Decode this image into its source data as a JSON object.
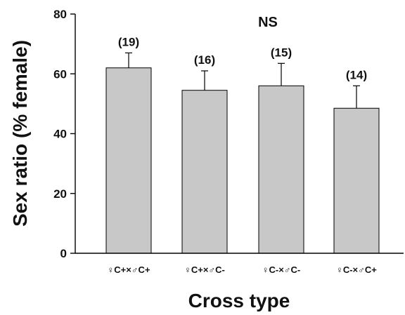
{
  "chart_data": {
    "type": "bar",
    "title": "NS",
    "xlabel": "Cross type",
    "ylabel": "Sex ratio (% female)",
    "ylim": [
      0,
      80
    ],
    "yticks": [
      0,
      20,
      40,
      60,
      80
    ],
    "categories": [
      "♀C+×♂C+",
      "♀C+×♂C-",
      "♀C-×♂C-",
      "♀C-×♂C+"
    ],
    "values": [
      62,
      54.5,
      56,
      48.5
    ],
    "error_upper": [
      67,
      61,
      63.5,
      56
    ],
    "annotations": [
      "(19)",
      "(16)",
      "(15)",
      "(14)"
    ],
    "grid": false,
    "legend": "none",
    "colors": {
      "bar_fill": "#c8c8c8",
      "bar_stroke": "#000000",
      "text": "#111111"
    }
  }
}
